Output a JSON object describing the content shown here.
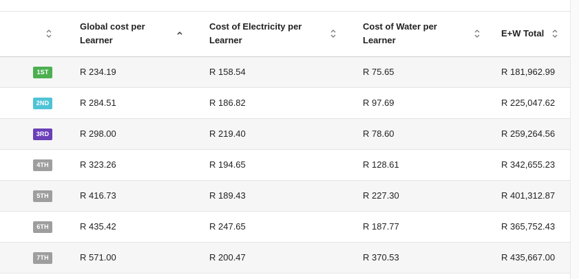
{
  "columns": {
    "rank": "",
    "global": "Global cost per Learner",
    "electricity": "Cost of Electricity per Learner",
    "water": "Cost of Water per Learner",
    "total": "E+W Total"
  },
  "sort": {
    "active_column": "global",
    "direction": "ascending"
  },
  "rows": [
    {
      "rank": "1ST",
      "badge_color": "#4caf50",
      "global": "R 234.19",
      "electricity": "R 158.54",
      "water": "R 75.65",
      "total": "R 181,962.99"
    },
    {
      "rank": "2ND",
      "badge_color": "#4fc3d6",
      "global": "R 284.51",
      "electricity": "R 186.82",
      "water": "R 97.69",
      "total": "R 225,047.62"
    },
    {
      "rank": "3RD",
      "badge_color": "#6a3fb8",
      "global": "R 298.00",
      "electricity": "R 219.40",
      "water": "R 78.60",
      "total": "R 259,264.56"
    },
    {
      "rank": "4TH",
      "badge_color": "#9e9e9e",
      "global": "R 323.26",
      "electricity": "R 194.65",
      "water": "R 128.61",
      "total": "R 342,655.23"
    },
    {
      "rank": "5TH",
      "badge_color": "#9e9e9e",
      "global": "R 416.73",
      "electricity": "R 189.43",
      "water": "R 227.30",
      "total": "R 401,312.87"
    },
    {
      "rank": "6TH",
      "badge_color": "#9e9e9e",
      "global": "R 435.42",
      "electricity": "R 247.65",
      "water": "R 187.77",
      "total": "R 365,752.43"
    },
    {
      "rank": "7TH",
      "badge_color": "#9e9e9e",
      "global": "R 571.00",
      "electricity": "R 200.47",
      "water": "R 370.53",
      "total": "R 435,667.00"
    }
  ],
  "icons": {
    "sort_unsorted": "unfold-icon",
    "sort_ascending": "chevron-up-icon"
  }
}
